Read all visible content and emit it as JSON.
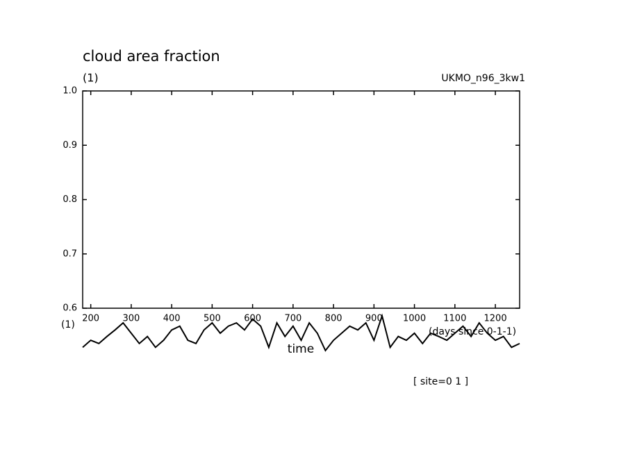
{
  "chart_data": {
    "type": "line",
    "title": "cloud area fraction",
    "y_unit": "(1)",
    "dataset": "UKMO_n96_3kw1",
    "xlabel": "time",
    "x_unit": "(days since 0-1-1)",
    "bottom_unit": "(1)",
    "annotation": "[ site=0 1 ]",
    "x": [
      180,
      200,
      220,
      240,
      260,
      280,
      300,
      320,
      340,
      360,
      380,
      400,
      420,
      440,
      460,
      480,
      500,
      520,
      540,
      560,
      580,
      600,
      620,
      640,
      660,
      680,
      700,
      720,
      740,
      760,
      780,
      800,
      820,
      840,
      860,
      880,
      900,
      920,
      940,
      960,
      980,
      1000,
      1020,
      1040,
      1060,
      1080,
      1100,
      1120,
      1140,
      1160,
      1180,
      1200,
      1220,
      1240,
      1260
    ],
    "series": [
      {
        "color": "#000000",
        "values": [
          0.528,
          0.541,
          0.535,
          0.548,
          0.56,
          0.573,
          0.554,
          0.535,
          0.548,
          0.528,
          0.541,
          0.56,
          0.567,
          0.541,
          0.535,
          0.56,
          0.573,
          0.554,
          0.567,
          0.573,
          0.56,
          0.58,
          0.567,
          0.528,
          0.573,
          0.548,
          0.567,
          0.541,
          0.573,
          0.554,
          0.522,
          0.541,
          0.554,
          0.567,
          0.56,
          0.573,
          0.541,
          0.586,
          0.528,
          0.548,
          0.541,
          0.554,
          0.535,
          0.554,
          0.548,
          0.541,
          0.554,
          0.567,
          0.548,
          0.573,
          0.554,
          0.541,
          0.548,
          0.528,
          0.535
        ]
      }
    ],
    "xlim": [
      180,
      1260
    ],
    "xticks": [
      200,
      300,
      400,
      500,
      600,
      700,
      800,
      900,
      1000,
      1100,
      1200
    ],
    "ylim": [
      0.6,
      1.0
    ],
    "yticks": [
      0.6,
      0.7,
      0.8,
      0.9,
      {
        "value": 1.0,
        "label": "1.0"
      }
    ]
  }
}
